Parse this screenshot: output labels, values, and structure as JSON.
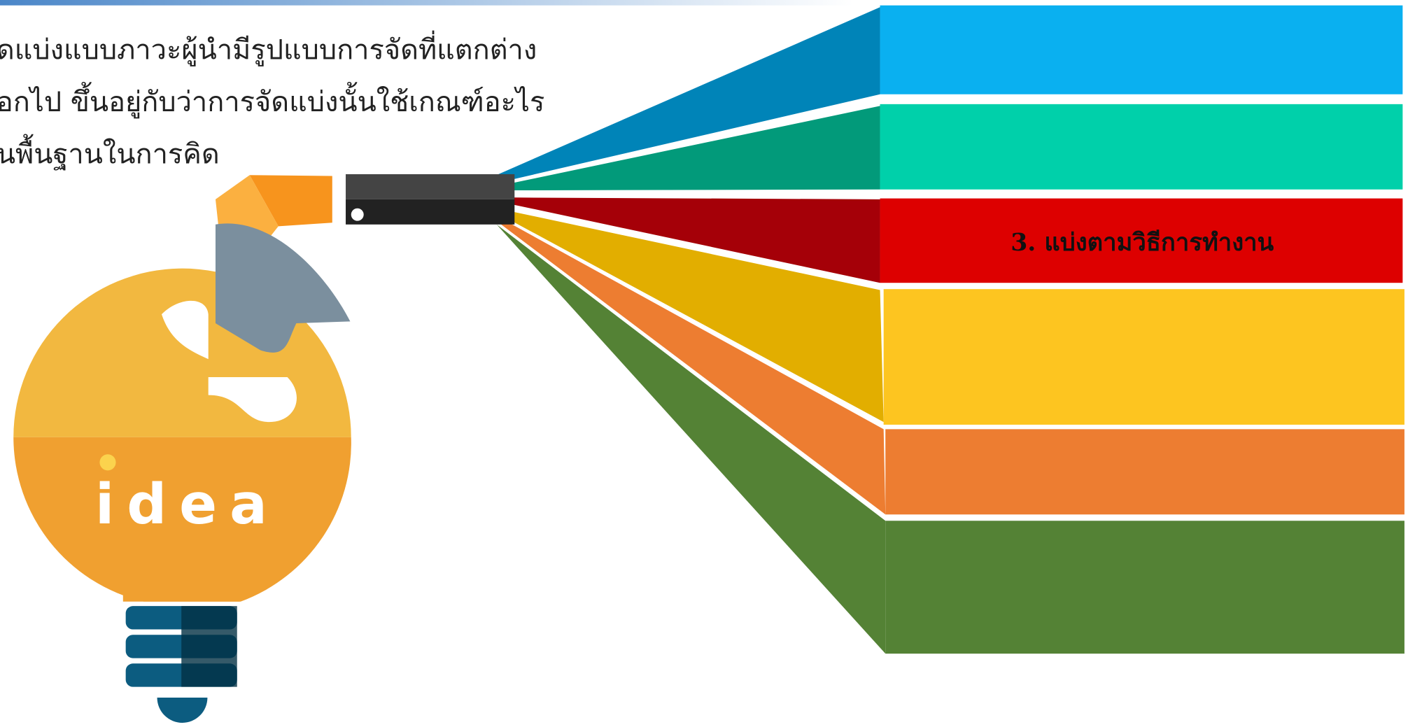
{
  "paragraph": {
    "lines": [
      "ดแบ่งแบบภาวะผู้นำมีรูปแบบการจัดที่แตกต่าง",
      "อกไป ขึ้นอยู่กับว่าการจัดแบ่งนั้นใช้เกณฑ์อะไร",
      "นพื้นฐานในการคิด"
    ]
  },
  "stripes": {
    "labels": [
      "3. แบ่งตามวิธีการทำงาน"
    ]
  },
  "illustration": {
    "word": "idea"
  }
}
